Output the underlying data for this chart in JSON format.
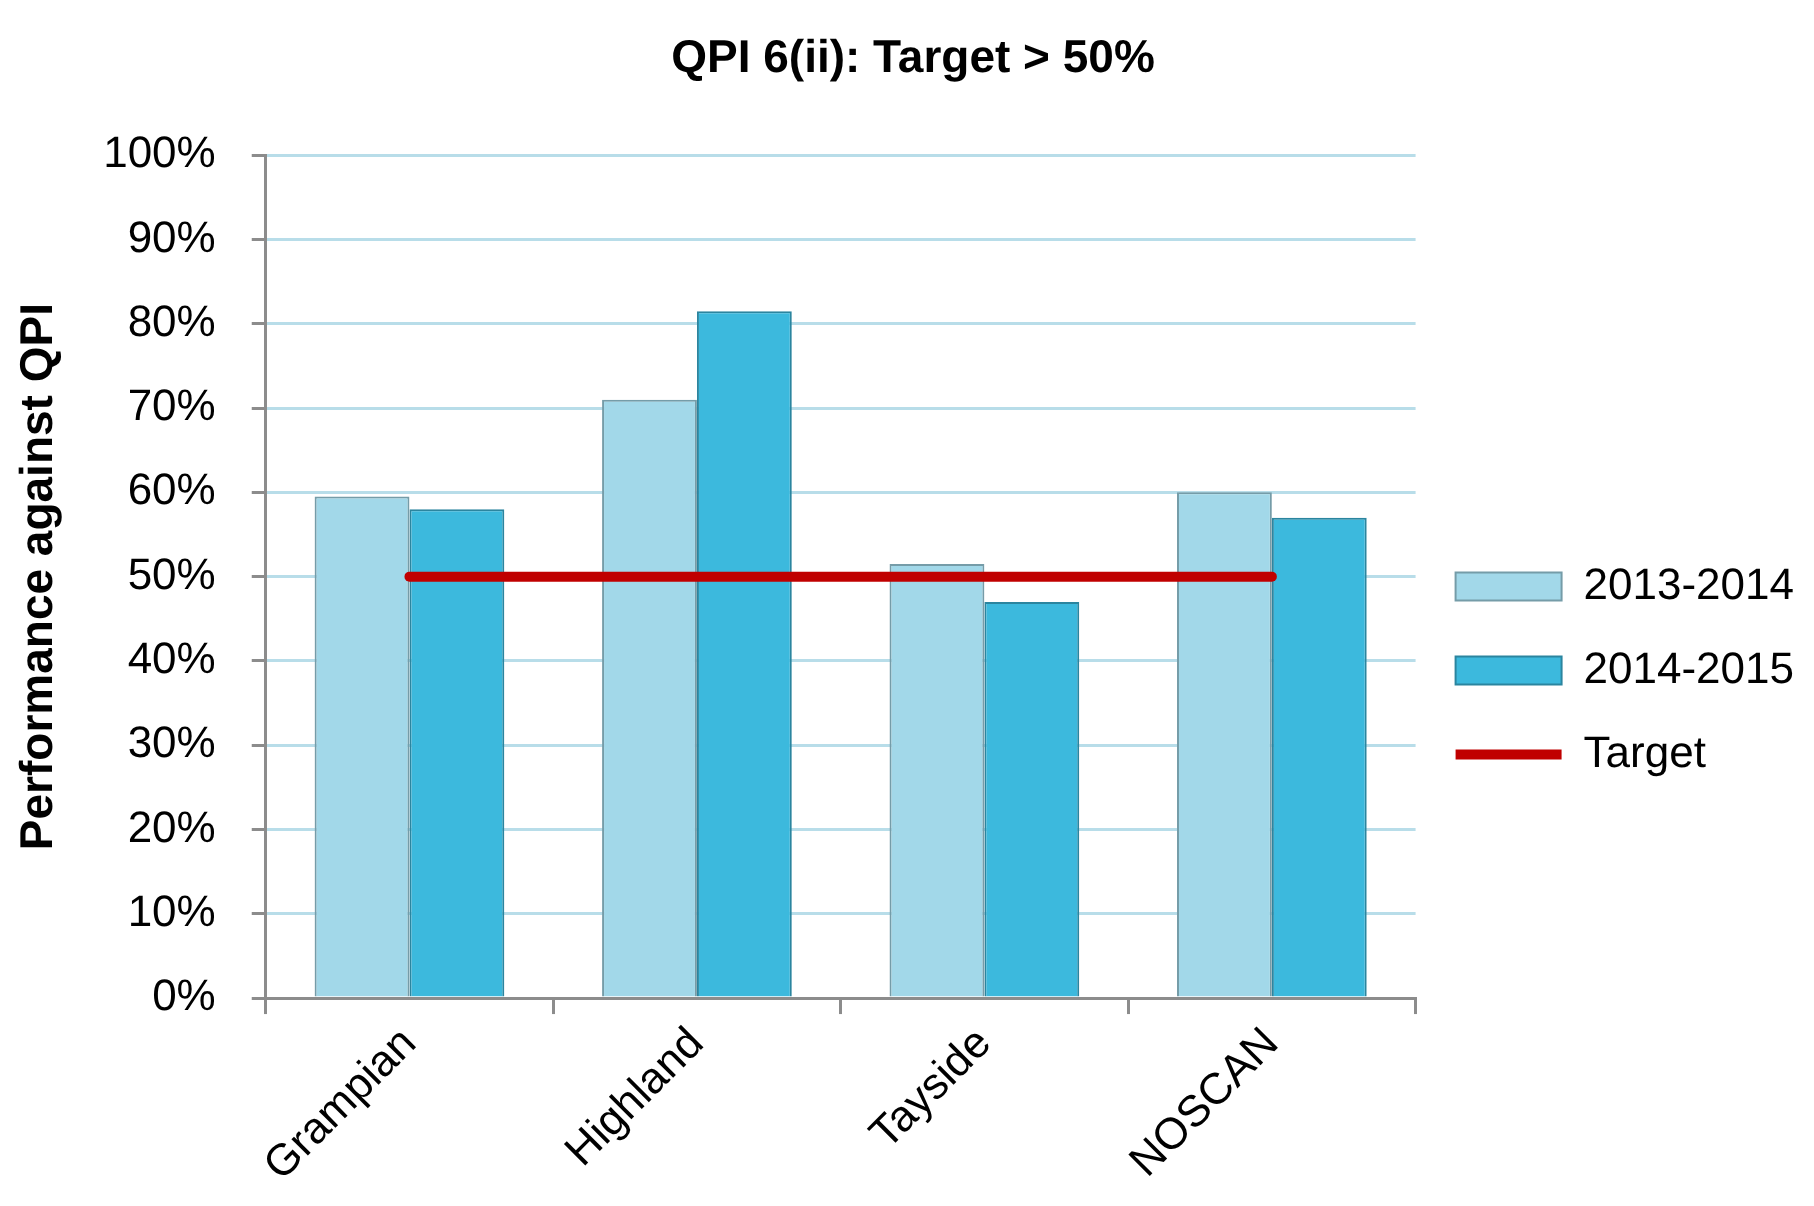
{
  "chart_data": {
    "type": "bar",
    "title": "QPI 6(ii): Target > 50%",
    "ylabel": "Performance against QPI",
    "categories": [
      "Grampian",
      "Highland",
      "Tayside",
      "NOSCAN"
    ],
    "series": [
      {
        "name": "2013-2014",
        "color": "#a2d8e9",
        "values": [
          59.5,
          71,
          51.5,
          60
        ]
      },
      {
        "name": "2014-2015",
        "color": "#3cb9dd",
        "values": [
          58,
          81.5,
          47,
          57
        ]
      },
      {
        "name": "Target",
        "type": "line",
        "color": "#c00000",
        "values": [
          50,
          50,
          50,
          50
        ]
      }
    ],
    "ylim": [
      0,
      100
    ],
    "yticks": [
      {
        "value": 0,
        "label": "0%"
      },
      {
        "value": 10,
        "label": "10%"
      },
      {
        "value": 20,
        "label": "20%"
      },
      {
        "value": 30,
        "label": "30%"
      },
      {
        "value": 40,
        "label": "40%"
      },
      {
        "value": 50,
        "label": "50%"
      },
      {
        "value": 60,
        "label": "60%"
      },
      {
        "value": 70,
        "label": "70%"
      },
      {
        "value": 80,
        "label": "80%"
      },
      {
        "value": 90,
        "label": "90%"
      },
      {
        "value": 100,
        "label": "100%"
      }
    ],
    "grid": "y",
    "legend": "right",
    "marker": "none"
  }
}
